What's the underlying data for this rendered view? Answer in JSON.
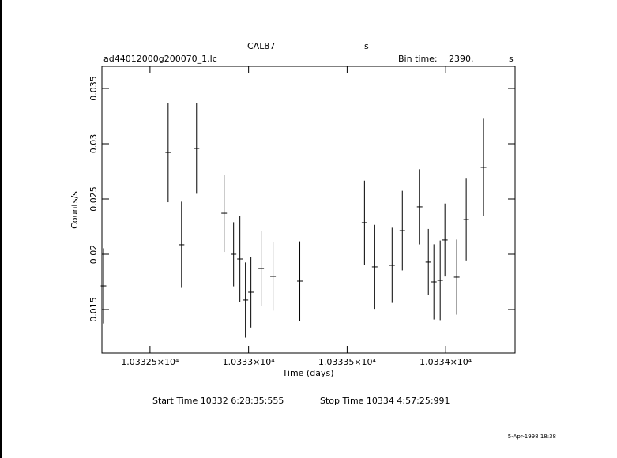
{
  "chart_data": {
    "type": "scatter",
    "title": "CAL87",
    "title_unit": "s",
    "file_name": "ad44012000g200070_1.lc",
    "bin_time_label": "Bin time:",
    "bin_time": "2390.",
    "bin_time_unit": "s",
    "x_label": "Time (days)",
    "y_label": "Counts/s",
    "start_time": "Start Time 10332  6:28:35:555",
    "stop_time": "Stop Time 10334  4:57:25:991",
    "timestamp": "5-Apr-1998 18:38",
    "color": "#000000",
    "xlim": [
      10332.256,
      10334.352
    ],
    "ylim": [
      0.01107,
      0.037
    ],
    "xticks": [
      {
        "value": 10332.5,
        "label": "1.03325×10⁴"
      },
      {
        "value": 10333,
        "label": "1.0333×10⁴"
      },
      {
        "value": 10333.5,
        "label": "1.03335×10⁴"
      },
      {
        "value": 10334,
        "label": "1.0334×10⁴"
      }
    ],
    "yticks": [
      0.015,
      0.02,
      0.025,
      0.03,
      0.035
    ],
    "x": [
      10332.264,
      10332.592,
      10332.66,
      10332.736,
      10332.876,
      10332.924,
      10332.956,
      10332.984,
      10333.012,
      10333.064,
      10333.124,
      10333.26,
      10333.588,
      10333.64,
      10333.728,
      10333.78,
      10333.868,
      10333.912,
      10333.94,
      10333.972,
      10333.996,
      10334.056,
      10334.104,
      10334.192
    ],
    "values": [
      0.01714,
      0.02921,
      0.02086,
      0.02957,
      0.02371,
      0.02,
      0.01957,
      0.01586,
      0.01657,
      0.01871,
      0.018,
      0.01757,
      0.02286,
      0.01886,
      0.019,
      0.02214,
      0.02429,
      0.01929,
      0.0175,
      0.01764,
      0.02129,
      0.01793,
      0.02314,
      0.02786
    ],
    "errors": [
      0.0034,
      0.0045,
      0.0039,
      0.0041,
      0.0035,
      0.0029,
      0.0039,
      0.0034,
      0.0032,
      0.0034,
      0.0031,
      0.0036,
      0.0038,
      0.0038,
      0.0034,
      0.0036,
      0.0034,
      0.003,
      0.0034,
      0.0036,
      0.0033,
      0.0034,
      0.0037,
      0.0044
    ]
  }
}
